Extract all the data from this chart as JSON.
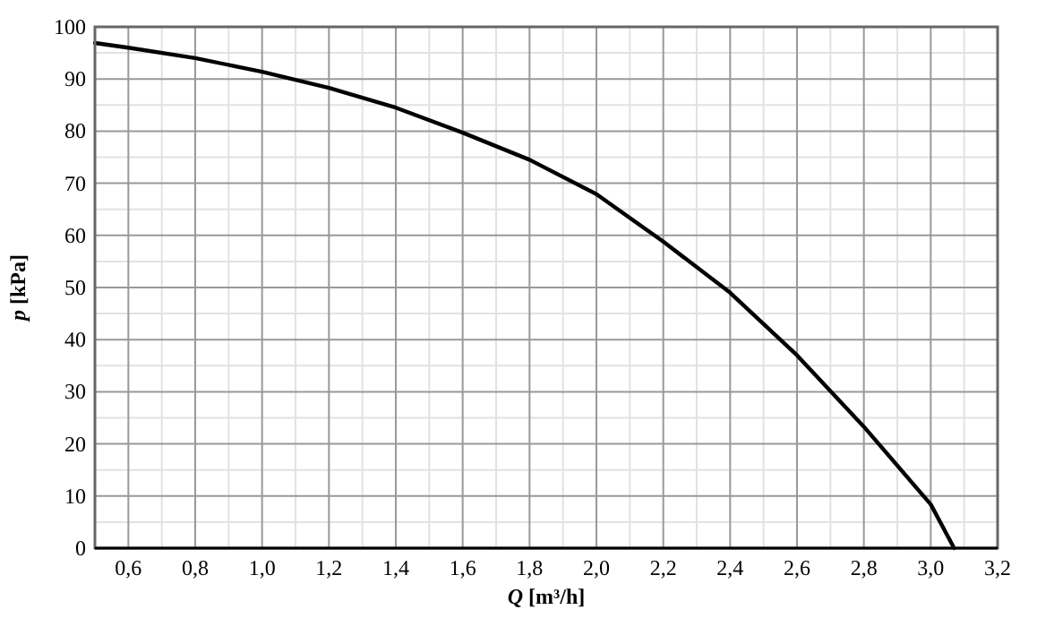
{
  "chart_data": {
    "type": "line",
    "xlabel": "Q [m³/h]",
    "ylabel": "p [kPa]",
    "series": [
      {
        "color": "#000000",
        "x": [
          0.5,
          0.6,
          0.8,
          1.0,
          1.2,
          1.4,
          1.6,
          1.8,
          2.0,
          2.2,
          2.4,
          2.6,
          2.8,
          3.0,
          3.07
        ],
        "values": [
          96.9,
          96,
          94,
          91.4,
          88.3,
          84.5,
          79.7,
          74.5,
          67.9,
          58.8,
          49,
          37,
          23.3,
          8.4,
          0
        ]
      }
    ],
    "xlim": [
      0.5,
      3.2
    ],
    "xticks": [
      {
        "value": 0.6,
        "label": "0,6"
      },
      {
        "value": 0.8,
        "label": "0,8"
      },
      {
        "value": 1.0,
        "label": "1,0"
      },
      {
        "value": 1.2,
        "label": "1,2"
      },
      {
        "value": 1.4,
        "label": "1,4"
      },
      {
        "value": 1.6,
        "label": "1,6"
      },
      {
        "value": 1.8,
        "label": "1,8"
      },
      {
        "value": 2.0,
        "label": "2,0"
      },
      {
        "value": 2.2,
        "label": "2,2"
      },
      {
        "value": 2.4,
        "label": "2,4"
      },
      {
        "value": 2.6,
        "label": "2,6"
      },
      {
        "value": 2.8,
        "label": "2,8"
      },
      {
        "value": 3.0,
        "label": "3,0"
      },
      {
        "value": 3.2,
        "label": "3,2"
      }
    ],
    "ylim": [
      0,
      100
    ],
    "yticks": [
      0,
      10,
      20,
      30,
      40,
      50,
      60,
      70,
      80,
      90,
      100
    ],
    "grid": true,
    "marker": "none",
    "line_style": "solid"
  }
}
